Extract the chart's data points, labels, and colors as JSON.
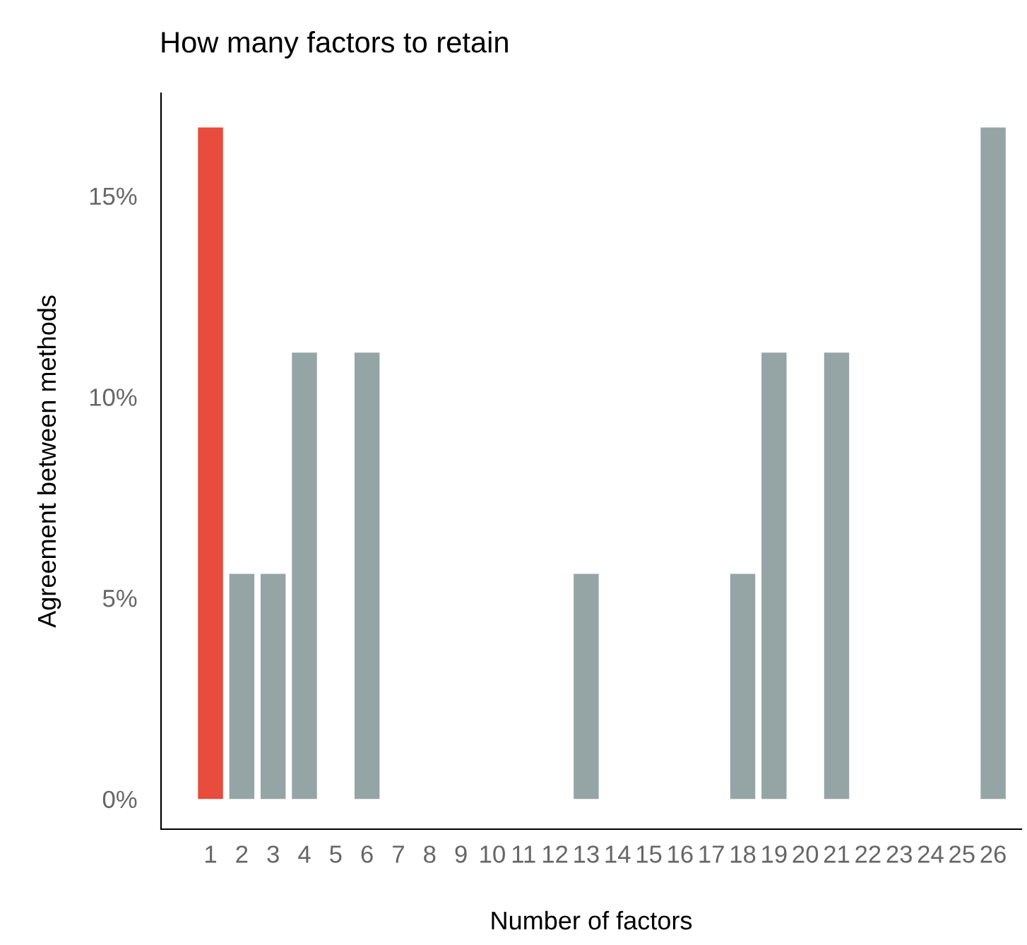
{
  "chart_data": {
    "type": "bar",
    "title": "How many factors to retain",
    "xlabel": "Number of factors",
    "ylabel": "Agreement between methods",
    "categories": [
      "1",
      "2",
      "3",
      "4",
      "5",
      "6",
      "7",
      "8",
      "9",
      "10",
      "11",
      "12",
      "13",
      "14",
      "15",
      "16",
      "17",
      "18",
      "19",
      "20",
      "21",
      "22",
      "23",
      "24",
      "25",
      "26"
    ],
    "values": [
      16.7,
      5.6,
      5.6,
      11.1,
      0,
      11.1,
      0,
      0,
      0,
      0,
      0,
      0,
      5.6,
      0,
      0,
      0,
      0,
      5.6,
      11.1,
      0,
      11.1,
      0,
      0,
      0,
      0,
      16.7
    ],
    "colors": [
      "#e74c3c",
      "#95a5a6",
      "#95a5a6",
      "#95a5a6",
      "#95a5a6",
      "#95a5a6",
      "#95a5a6",
      "#95a5a6",
      "#95a5a6",
      "#95a5a6",
      "#95a5a6",
      "#95a5a6",
      "#95a5a6",
      "#95a5a6",
      "#95a5a6",
      "#95a5a6",
      "#95a5a6",
      "#95a5a6",
      "#95a5a6",
      "#95a5a6",
      "#95a5a6",
      "#95a5a6",
      "#95a5a6",
      "#95a5a6",
      "#95a5a6",
      "#95a5a6"
    ],
    "ylim": [
      -0.75,
      17.55
    ],
    "yticks": [
      {
        "value": 0,
        "label": "0%"
      },
      {
        "value": 5,
        "label": "5%"
      },
      {
        "value": 10,
        "label": "10%"
      },
      {
        "value": 15,
        "label": "15%"
      }
    ],
    "grid": false,
    "legend": false
  }
}
